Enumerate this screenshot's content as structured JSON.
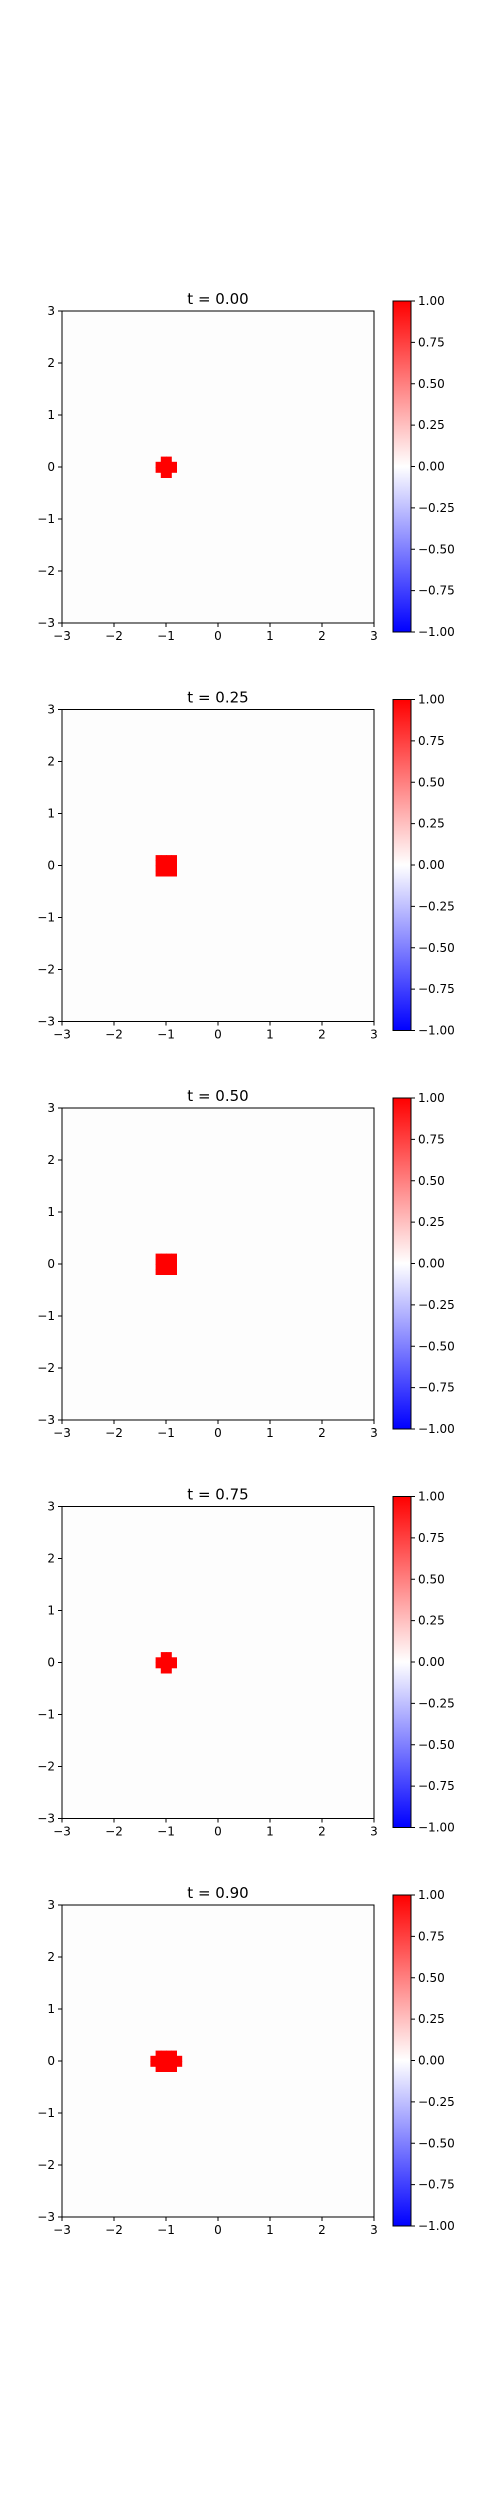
{
  "chart_data": [
    {
      "type": "heatmap",
      "title": "t = 0.00",
      "xlim": [
        -3,
        3
      ],
      "ylim": [
        -3,
        3
      ],
      "xticks": [
        -3,
        -2,
        -1,
        0,
        1,
        2,
        3
      ],
      "yticks": [
        -3,
        -2,
        -1,
        0,
        1,
        2,
        3
      ],
      "colorbar": {
        "cmap": "bwr",
        "range": [
          -1.0,
          1.0
        ],
        "ticks": [
          "1.00",
          "0.75",
          "0.50",
          "0.25",
          "0.00",
          "-0.25",
          "-0.50",
          "-0.75",
          "-1.00"
        ]
      },
      "blob": {
        "cx": -1.0,
        "cy": 0.0,
        "rx": 0.22,
        "ry": 0.2,
        "value": 1.0
      }
    },
    {
      "type": "heatmap",
      "title": "t = 0.25",
      "xlim": [
        -3,
        3
      ],
      "ylim": [
        -3,
        3
      ],
      "xticks": [
        -3,
        -2,
        -1,
        0,
        1,
        2,
        3
      ],
      "yticks": [
        -3,
        -2,
        -1,
        0,
        1,
        2,
        3
      ],
      "colorbar": {
        "cmap": "bwr",
        "range": [
          -1.0,
          1.0
        ],
        "ticks": [
          "1.00",
          "0.75",
          "0.50",
          "0.25",
          "0.00",
          "-0.25",
          "-0.50",
          "-0.75",
          "-1.00"
        ]
      },
      "blob": {
        "cx": -1.0,
        "cy": 0.0,
        "rx": 0.22,
        "ry": 0.22,
        "value": 1.0
      }
    },
    {
      "type": "heatmap",
      "title": "t = 0.50",
      "xlim": [
        -3,
        3
      ],
      "ylim": [
        -3,
        3
      ],
      "xticks": [
        -3,
        -2,
        -1,
        0,
        1,
        2,
        3
      ],
      "yticks": [
        -3,
        -2,
        -1,
        0,
        1,
        2,
        3
      ],
      "colorbar": {
        "cmap": "bwr",
        "range": [
          -1.0,
          1.0
        ],
        "ticks": [
          "1.00",
          "0.75",
          "0.50",
          "0.25",
          "0.00",
          "-0.25",
          "-0.50",
          "-0.75",
          "-1.00"
        ]
      },
      "blob": {
        "cx": -1.0,
        "cy": 0.0,
        "rx": 0.24,
        "ry": 0.24,
        "value": 1.0
      }
    },
    {
      "type": "heatmap",
      "title": "t = 0.75",
      "xlim": [
        -3,
        3
      ],
      "ylim": [
        -3,
        3
      ],
      "xticks": [
        -3,
        -2,
        -1,
        0,
        1,
        2,
        3
      ],
      "yticks": [
        -3,
        -2,
        -1,
        0,
        1,
        2,
        3
      ],
      "colorbar": {
        "cmap": "bwr",
        "range": [
          -1.0,
          1.0
        ],
        "ticks": [
          "1.00",
          "0.75",
          "0.50",
          "0.25",
          "0.00",
          "-0.25",
          "-0.50",
          "-0.75",
          "-1.00"
        ]
      },
      "blob": {
        "cx": -1.0,
        "cy": 0.0,
        "rx": 0.2,
        "ry": 0.2,
        "value": 1.0
      }
    },
    {
      "type": "heatmap",
      "title": "t = 0.90",
      "xlim": [
        -3,
        3
      ],
      "ylim": [
        -3,
        3
      ],
      "xticks": [
        -3,
        -2,
        -1,
        0,
        1,
        2,
        3
      ],
      "yticks": [
        -3,
        -2,
        -1,
        0,
        1,
        2,
        3
      ],
      "colorbar": {
        "cmap": "bwr",
        "range": [
          -1.0,
          1.0
        ],
        "ticks": [
          "1.00",
          "0.75",
          "0.50",
          "0.25",
          "0.00",
          "-0.25",
          "-0.50",
          "-0.75",
          "-1.00"
        ]
      },
      "blob": {
        "cx": -1.0,
        "cy": 0.0,
        "rx": 0.3,
        "ry": 0.24,
        "value": 1.0
      }
    }
  ]
}
